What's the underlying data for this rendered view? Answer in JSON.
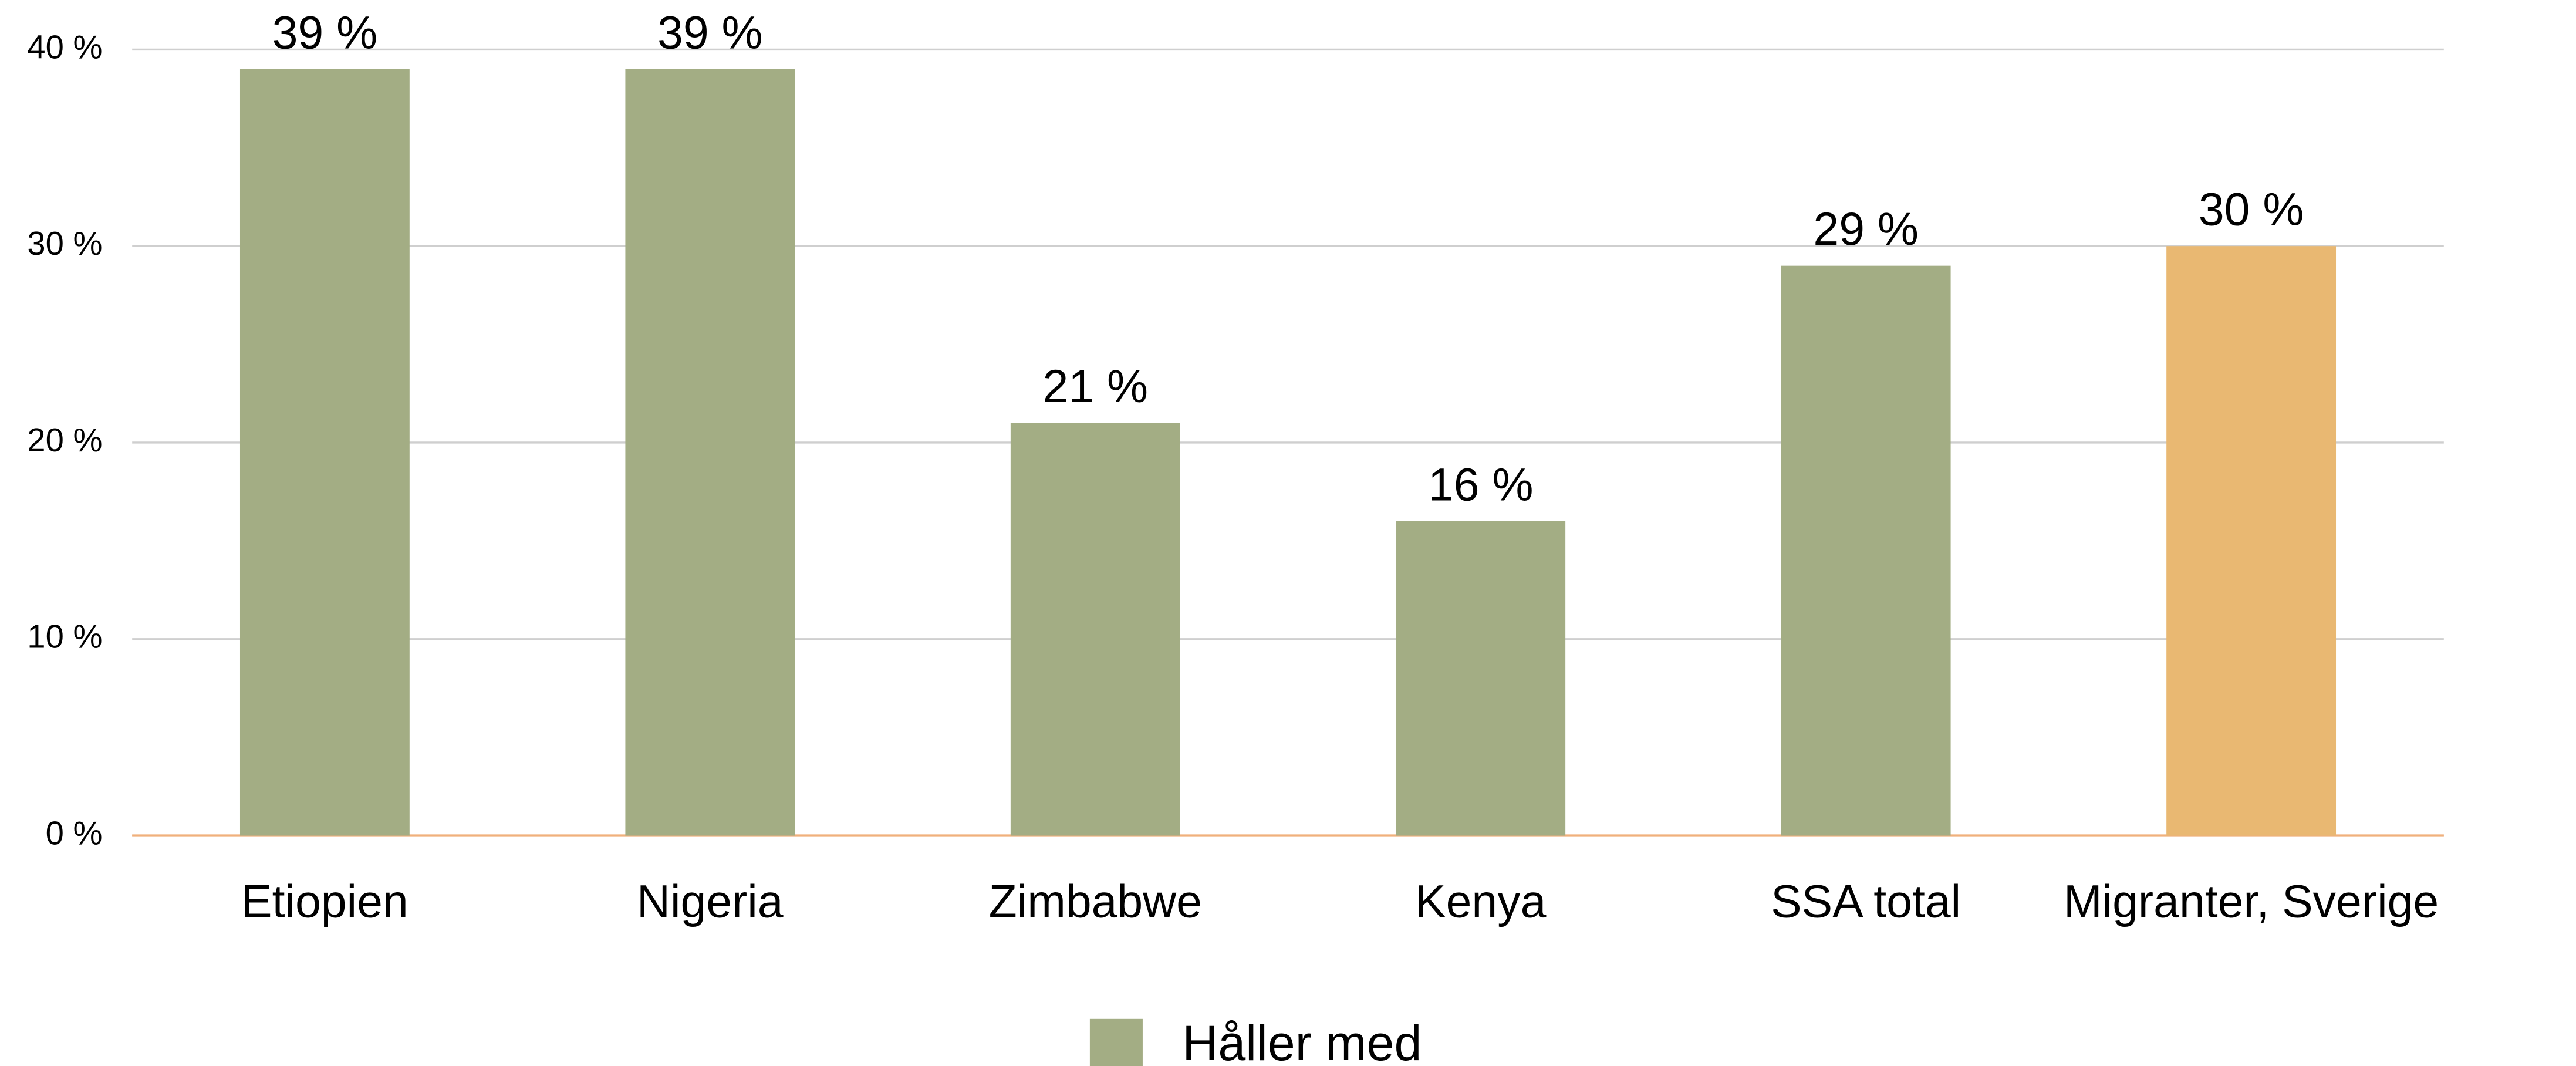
{
  "chart_data": {
    "type": "bar",
    "categories": [
      "Etiopien",
      "Nigeria",
      "Zimbabwe",
      "Kenya",
      "SSA total",
      "Migranter, Sverige"
    ],
    "series": [
      {
        "name": "Håller med",
        "color": "#a3ad84",
        "values": [
          39,
          39,
          21,
          16,
          29,
          30
        ],
        "value_labels": [
          "39 %",
          "39 %",
          "21 %",
          "16 %",
          "29 %",
          "30 %"
        ],
        "colors": [
          "#a3ad84",
          "#a3ad84",
          "#a3ad84",
          "#a3ad84",
          "#a3ad84",
          "#e9b872"
        ]
      }
    ],
    "ylim": [
      0,
      40
    ],
    "yticks": [
      {
        "value": 0,
        "label": "0 %"
      },
      {
        "value": 10,
        "label": "10 %"
      },
      {
        "value": 20,
        "label": "20 %"
      },
      {
        "value": 30,
        "label": "30 %"
      },
      {
        "value": 40,
        "label": "40 %"
      }
    ],
    "grid": true,
    "legend": "bottom"
  }
}
